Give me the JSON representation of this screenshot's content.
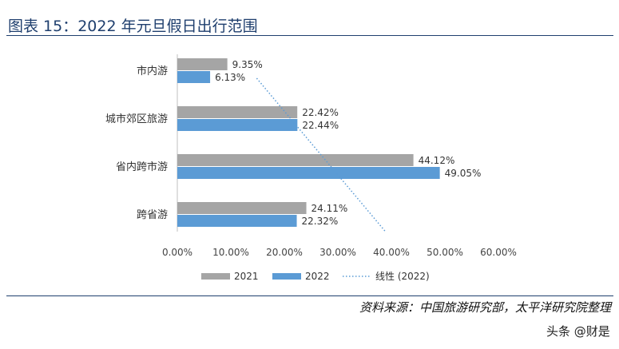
{
  "title": "图表 15：2022 年元旦假日出行范围",
  "source": "资料来源：中国旅游研究部，太平洋研究院整理",
  "watermark": "头条 @财是",
  "colors": {
    "s2021": "#a5a5a5",
    "s2022": "#5b9bd5",
    "trend": "#5b9bd5",
    "title": "#1f3f6e"
  },
  "chart_data": {
    "type": "bar",
    "orientation": "horizontal",
    "categories": [
      "市内游",
      "城市郊区旅游",
      "省内跨市游",
      "跨省游"
    ],
    "series": [
      {
        "name": "2021",
        "values": [
          9.35,
          22.42,
          44.12,
          24.11
        ],
        "labels": [
          "9.35%",
          "22.42%",
          "44.12%",
          "24.11%"
        ]
      },
      {
        "name": "2022",
        "values": [
          6.13,
          22.44,
          49.05,
          22.32
        ],
        "labels": [
          "6.13%",
          "22.44%",
          "49.05%",
          "22.32%"
        ]
      }
    ],
    "trendline": {
      "name": "线性 (2022)",
      "series": "2022",
      "type": "linear"
    },
    "xlim": [
      0,
      60
    ],
    "xticks": [
      "0.00%",
      "10.00%",
      "20.00%",
      "30.00%",
      "40.00%",
      "50.00%",
      "60.00%"
    ],
    "legend": "bottom",
    "grid": false
  }
}
